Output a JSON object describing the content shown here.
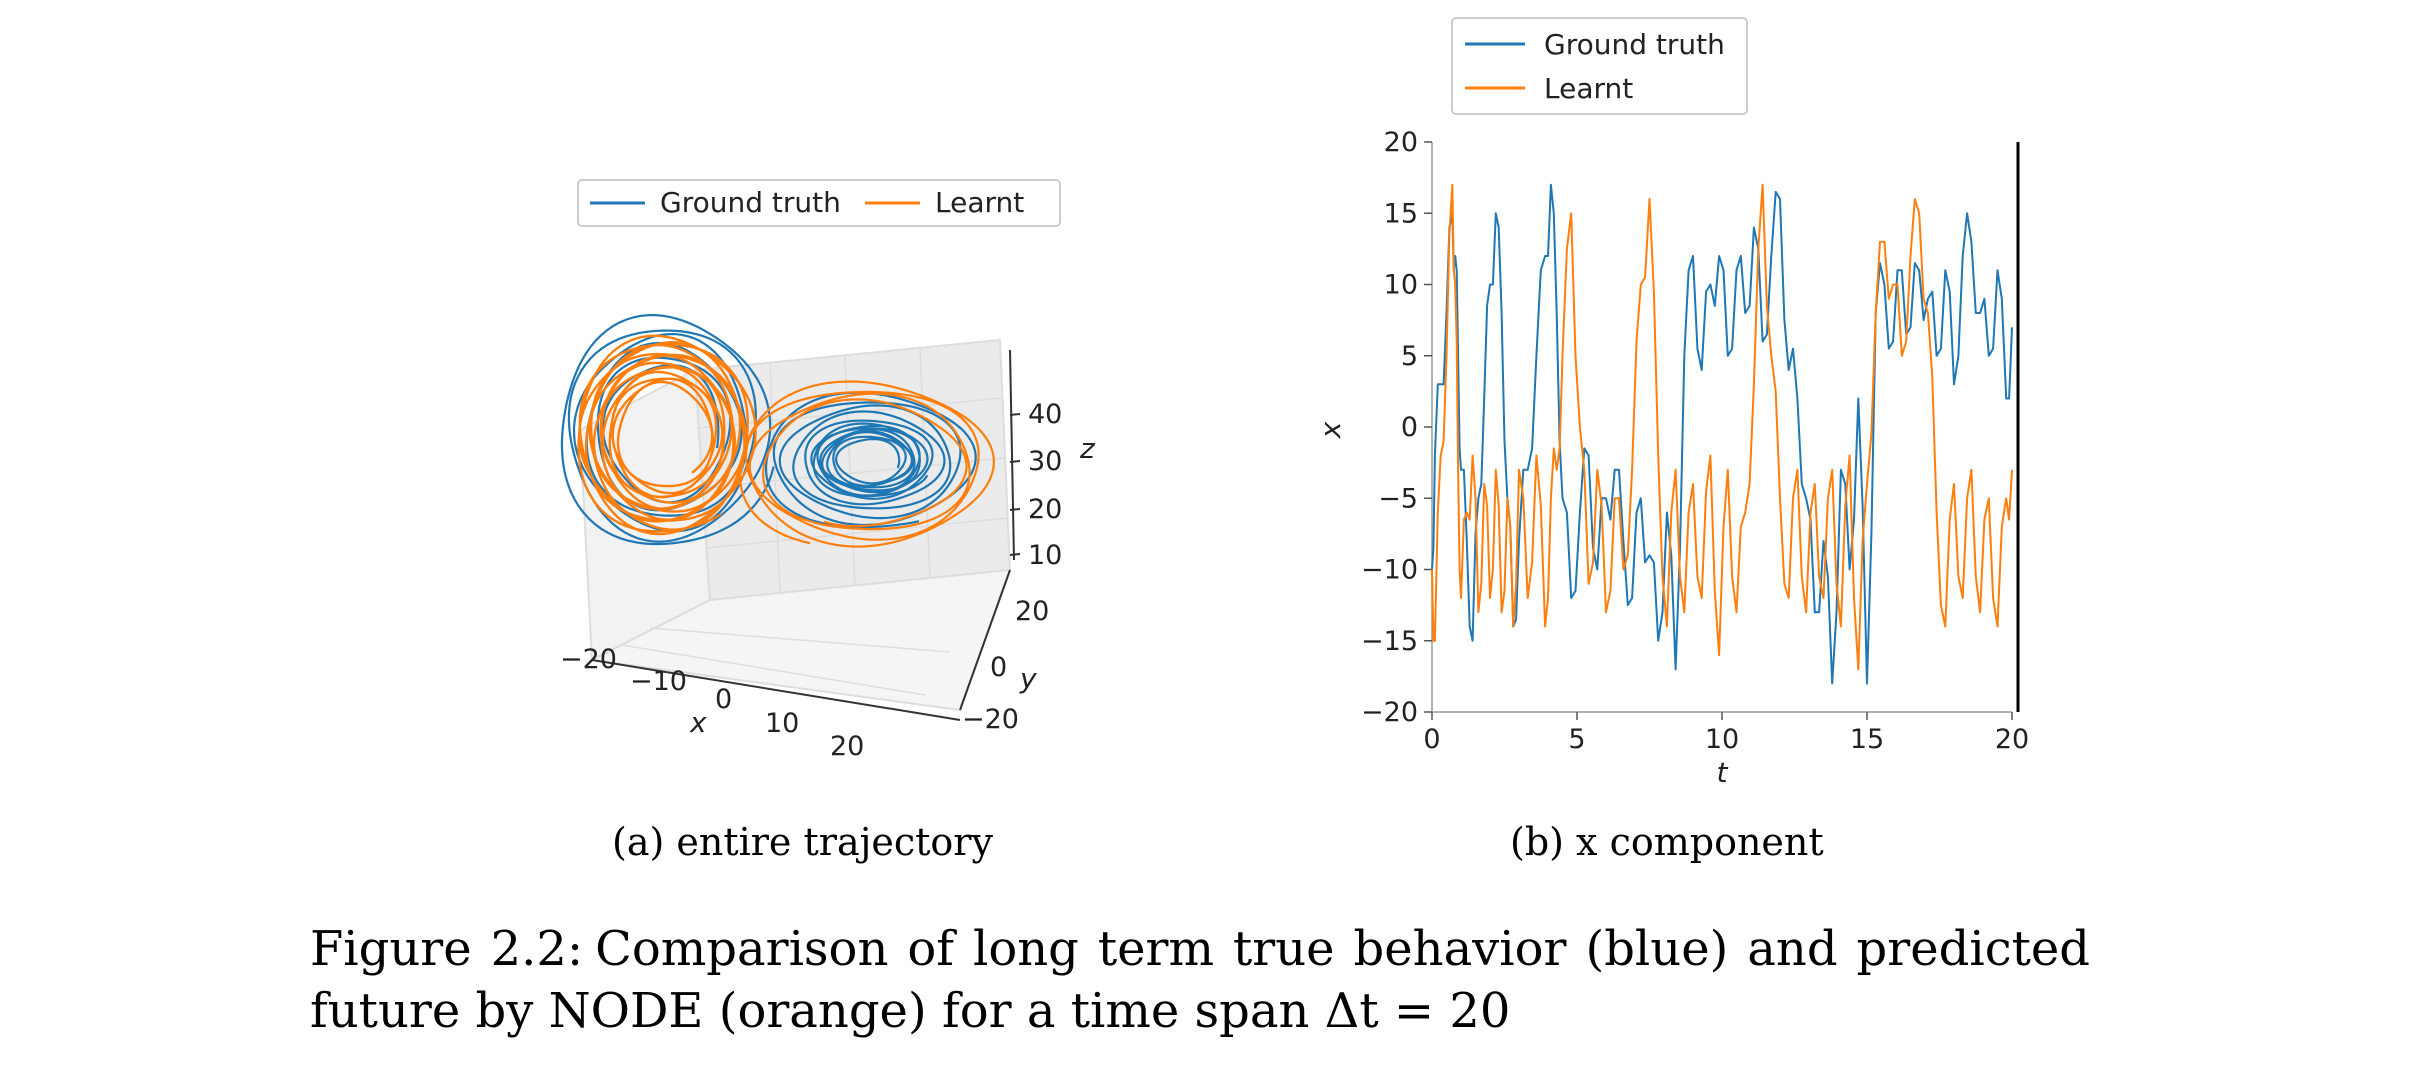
{
  "figure": {
    "caption_label": "Figure 2.2:",
    "caption_text": "Comparison of long term true behavior (blue) and predicted future by NODE (orange) for a time span Δt = 20"
  },
  "subfigures": {
    "a_caption": "(a) entire trajectory",
    "b_caption": "(b) x component"
  },
  "colors": {
    "ground_truth": "#1f77b4",
    "learnt": "#ff7f0e"
  },
  "chart_data": [
    {
      "type": "line",
      "title": "",
      "projection": "3d",
      "legend": [
        "Ground truth",
        "Learnt"
      ],
      "legend_placement": "top-center",
      "axes": {
        "x": {
          "label": "x",
          "ticks": [
            "−20",
            "−10",
            "0",
            "10",
            "20"
          ]
        },
        "y": {
          "label": "y",
          "ticks": [
            "−20",
            "0",
            "20"
          ]
        },
        "z": {
          "label": "z",
          "ticks": [
            "10",
            "20",
            "30",
            "40"
          ]
        }
      },
      "series": [
        {
          "name": "Ground truth",
          "attractor": "lorenz",
          "wings": "both"
        },
        {
          "name": "Learnt",
          "attractor": "lorenz",
          "wings": "both"
        }
      ]
    },
    {
      "type": "line",
      "title": "",
      "xlabel": "t",
      "ylabel": "x",
      "xlim": [
        0,
        20
      ],
      "ylim": [
        -20,
        20
      ],
      "xticks": [
        "0",
        "5",
        "10",
        "15",
        "20"
      ],
      "yticks": [
        "−20",
        "−15",
        "−10",
        "−5",
        "0",
        "5",
        "10",
        "15",
        "20"
      ],
      "legend_placement": "top-left, above axes",
      "grid": false,
      "series": [
        {
          "name": "Ground truth",
          "x": [
            0,
            0.1,
            0.3,
            0.5,
            0.7,
            0.8,
            0.9,
            1.0,
            1.2,
            1.4,
            1.6,
            1.8,
            2.0,
            2.2,
            2.4,
            2.6,
            2.8,
            3.0,
            3.3,
            3.6,
            3.9,
            4.1,
            4.3,
            4.5,
            4.8,
            5.1,
            5.4,
            5.7,
            6.0,
            6.3,
            6.6,
            6.9,
            7.2,
            7.5,
            7.8,
            8.1,
            8.4,
            8.7,
            9.0,
            9.3,
            9.6,
            9.9,
            10.2,
            10.5,
            10.8,
            11.1,
            11.4,
            11.7,
            12.0,
            12.3,
            12.6,
            12.9,
            13.2,
            13.5,
            13.8,
            14.1,
            14.4,
            14.7,
            15.0,
            15.3,
            15.6,
            15.9,
            16.2,
            16.5,
            16.8,
            17.1,
            17.4,
            17.7,
            18.0,
            18.3,
            18.6,
            18.9,
            19.2,
            19.5,
            19.8,
            20.0
          ],
          "y": [
            -10,
            -2,
            3,
            8,
            15,
            12,
            5,
            -3,
            -8,
            -15,
            -5,
            2,
            10,
            15,
            8,
            -5,
            -14,
            -8,
            -3,
            5,
            12,
            17,
            8,
            -5,
            -12,
            -6,
            -2,
            -10,
            -5,
            -3,
            -8,
            -12,
            -5,
            -9,
            -15,
            -6,
            -17,
            5,
            12,
            4,
            10,
            12,
            5,
            11,
            8,
            14,
            6,
            12,
            16,
            4,
            2,
            -5,
            -13,
            -8,
            -18,
            -3,
            -10,
            2,
            -18,
            8,
            10,
            6,
            11,
            7,
            11,
            9,
            5,
            11,
            3,
            12,
            13,
            8,
            5,
            11,
            2,
            7
          ]
        },
        {
          "name": "Learnt",
          "x": [
            0,
            0.1,
            0.3,
            0.5,
            0.7,
            0.8,
            0.9,
            1.0,
            1.2,
            1.4,
            1.6,
            1.8,
            2.0,
            2.2,
            2.4,
            2.6,
            2.8,
            3.0,
            3.3,
            3.6,
            3.9,
            4.1,
            4.3,
            4.5,
            4.8,
            5.1,
            5.4,
            5.7,
            6.0,
            6.3,
            6.6,
            6.9,
            7.2,
            7.5,
            7.8,
            8.1,
            8.4,
            8.7,
            9.0,
            9.3,
            9.6,
            9.9,
            10.2,
            10.5,
            10.8,
            11.1,
            11.4,
            11.7,
            12.0,
            12.3,
            12.6,
            12.9,
            13.2,
            13.5,
            13.8,
            14.1,
            14.4,
            14.7,
            15.0,
            15.3,
            15.6,
            15.9,
            16.2,
            16.5,
            16.8,
            17.1,
            17.4,
            17.7,
            18.0,
            18.3,
            18.6,
            18.9,
            19.2,
            19.5,
            19.8,
            20.0
          ],
          "y": [
            -10,
            -15,
            -2,
            5,
            17,
            10,
            -3,
            -12,
            -6,
            -2,
            -13,
            -4,
            -12,
            -3,
            -13,
            -5,
            -14,
            -3,
            -12,
            -2,
            -14,
            -5,
            -3,
            5,
            15,
            0,
            -11,
            -3,
            -13,
            -5,
            -10,
            -3,
            10,
            16,
            -2,
            -14,
            -3,
            -13,
            -4,
            -12,
            -2,
            -16,
            -3,
            -13,
            -6,
            3,
            17,
            5,
            -5,
            -12,
            -3,
            -13,
            -4,
            -12,
            -3,
            -14,
            -2,
            -17,
            -4,
            8,
            13,
            10,
            5,
            12,
            15,
            8,
            -6,
            -14,
            -4,
            -12,
            -3,
            -13,
            -5,
            -14,
            -5,
            -3
          ]
        }
      ]
    }
  ]
}
